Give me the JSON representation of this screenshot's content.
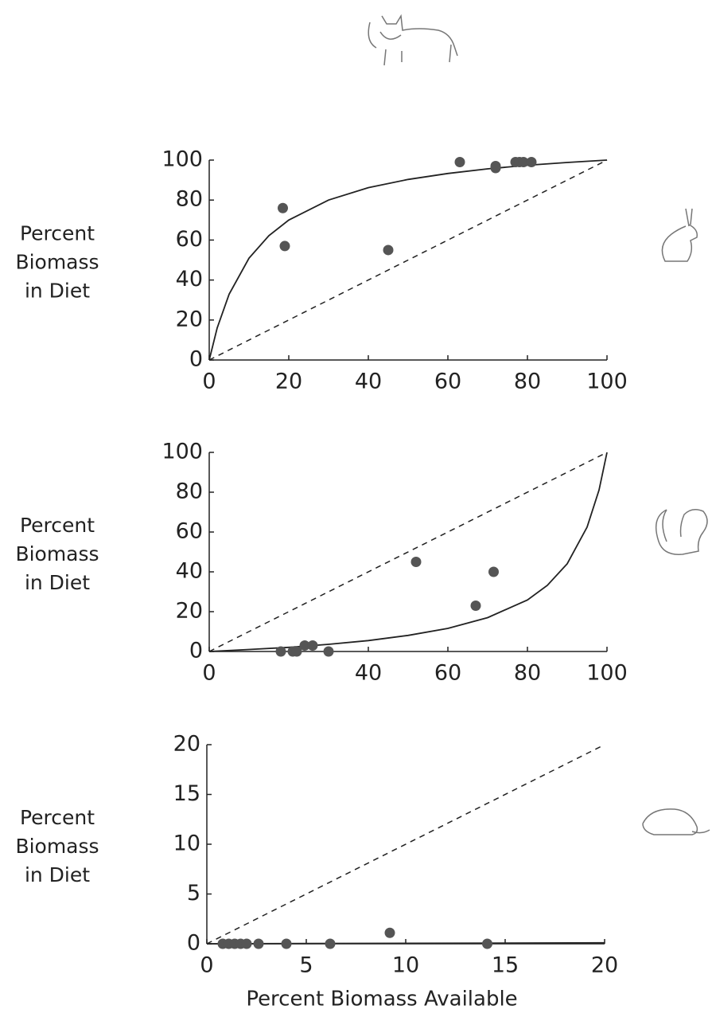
{
  "chart_data": [
    {
      "type": "scatter",
      "ylabel": [
        "Percent",
        "Biomass",
        "in Diet"
      ],
      "xlim": [
        0,
        100
      ],
      "ylim": [
        0,
        100
      ],
      "xticks": [
        0,
        20,
        40,
        60,
        80,
        100
      ],
      "yticks": [
        0,
        20,
        40,
        60,
        80,
        100
      ],
      "color": "#555555",
      "points": {
        "x": [
          18.5,
          19,
          45,
          63,
          72,
          72,
          77,
          78,
          79,
          81
        ],
        "y": [
          76,
          57,
          55,
          99,
          96,
          97,
          99,
          99,
          99,
          99
        ]
      },
      "curve": {
        "x": [
          0,
          2,
          5,
          10,
          15,
          20,
          30,
          40,
          50,
          60,
          70,
          80,
          90,
          100
        ],
        "y": [
          0,
          16,
          32.9,
          50.9,
          62.2,
          70,
          80,
          86.2,
          90.3,
          93.3,
          95.6,
          97.4,
          98.8,
          100
        ]
      },
      "diagonal": {
        "x": [
          0,
          100
        ],
        "y": [
          0,
          100
        ]
      }
    },
    {
      "type": "scatter",
      "ylabel": [
        "Percent",
        "Biomass",
        "in Diet"
      ],
      "xlim": [
        0,
        100
      ],
      "ylim": [
        0,
        100
      ],
      "xticks": [
        0,
        40,
        60,
        80,
        100
      ],
      "yticks": [
        0,
        20,
        40,
        60,
        80,
        100
      ],
      "color": "#555555",
      "points": {
        "x": [
          18,
          21,
          22,
          24,
          26,
          30,
          52,
          67,
          71.5
        ],
        "y": [
          0,
          0,
          0,
          3,
          3,
          0,
          45,
          23,
          40
        ]
      },
      "curve": {
        "x": [
          0,
          10,
          20,
          30,
          40,
          50,
          60,
          70,
          80,
          85,
          90,
          95,
          98,
          100
        ],
        "y": [
          0,
          1,
          2.1,
          3.6,
          5.5,
          8.1,
          11.6,
          17,
          25.9,
          33.2,
          44.1,
          62.5,
          81.1,
          100
        ]
      },
      "diagonal": {
        "x": [
          0,
          100
        ],
        "y": [
          0,
          100
        ]
      }
    },
    {
      "type": "scatter",
      "ylabel": [
        "Percent",
        "Biomass",
        "in Diet"
      ],
      "xlabel": "Percent Biomass Available",
      "xlim": [
        0,
        20
      ],
      "ylim": [
        0,
        20
      ],
      "xticks": [
        0,
        5,
        10,
        15,
        20
      ],
      "yticks": [
        0,
        5,
        10,
        15,
        20
      ],
      "color": "#555555",
      "points": {
        "x": [
          0.8,
          1.1,
          1.4,
          1.7,
          2,
          2.6,
          4,
          6.2,
          9.2,
          14.1
        ],
        "y": [
          0,
          0,
          0,
          0,
          0,
          0,
          0,
          0,
          1.1,
          0
        ]
      },
      "curve": {
        "x": [
          0,
          20
        ],
        "y": [
          0,
          0.1
        ]
      },
      "diagonal": {
        "x": [
          0,
          20
        ],
        "y": [
          0,
          20
        ]
      }
    }
  ]
}
